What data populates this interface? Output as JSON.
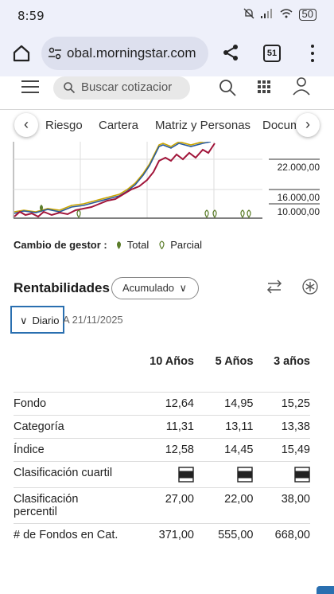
{
  "status_bar": {
    "time": "8:59",
    "battery": "50"
  },
  "browser": {
    "url": "obal.morningstar.com",
    "tab_count": "51"
  },
  "site_header": {
    "search_placeholder": "Buscar cotizacior"
  },
  "subnav": {
    "items": [
      "Riesgo",
      "Cartera",
      "Matriz y Personas",
      "Docum"
    ]
  },
  "chart": {
    "y_ticks": [
      "22.000,00",
      "16.000,00",
      "10.000,00"
    ]
  },
  "legend": {
    "label": "Cambio de gestor :",
    "total": "Total",
    "partial": "Parcial"
  },
  "returns": {
    "title": "Rentabilidades",
    "mode": "Acumulado",
    "frequency": "Diario",
    "as_of": "A 21/11/2025",
    "columns": [
      "10 Años",
      "5 Años",
      "3 años"
    ],
    "rows": [
      {
        "label": "Fondo",
        "values": [
          "12,64",
          "14,95",
          "15,25"
        ]
      },
      {
        "label": "Categoría",
        "values": [
          "11,31",
          "13,11",
          "13,38"
        ]
      },
      {
        "label": "Índice",
        "values": [
          "12,58",
          "14,45",
          "15,49"
        ]
      },
      {
        "label": "Clasificación cuartil",
        "values": [
          "quartile-icon",
          "quartile-icon",
          "quartile-icon"
        ]
      },
      {
        "label": "Clasificación percentil",
        "values": [
          "27,00",
          "22,00",
          "38,00"
        ]
      },
      {
        "label": "# de Fondos en Cat.",
        "values": [
          "371,00",
          "555,00",
          "668,00"
        ]
      }
    ]
  },
  "colors": {
    "fund_line": "#a1153a",
    "category_line": "#2a5b9a",
    "index_line": "#c9a400",
    "accent": "#2a6fb0"
  }
}
